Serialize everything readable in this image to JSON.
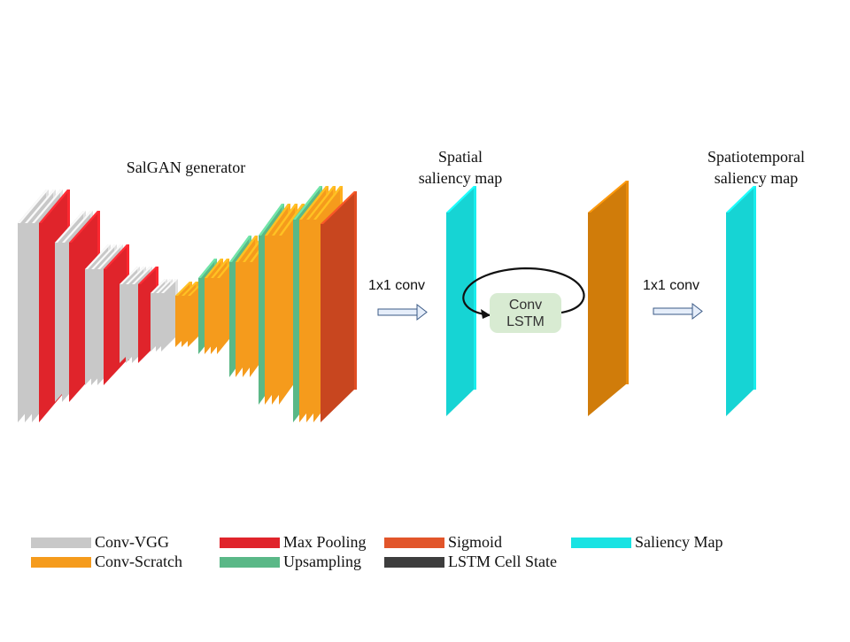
{
  "diagram": {
    "generator_title": "SalGAN generator",
    "spatial_title_1": "Spatial",
    "spatial_title_2": "saliency map",
    "spatiotemporal_title_1": "Spatiotemporal",
    "spatiotemporal_title_2": "saliency map",
    "conv1_label": "1x1 conv",
    "conv2_label": "1x1 conv",
    "lstm_line1": "Conv",
    "lstm_line2": "LSTM"
  },
  "legend": [
    {
      "label": "Conv-VGG",
      "color": "#c8c8c8"
    },
    {
      "label": "Conv-Scratch",
      "color": "#f59b1c"
    },
    {
      "label": "Max Pooling",
      "color": "#e0242b"
    },
    {
      "label": "Upsampling",
      "color": "#5ab887"
    },
    {
      "label": "Sigmoid",
      "color": "#e2552a"
    },
    {
      "label": "LSTM Cell State",
      "color": "#3d3d3d"
    },
    {
      "label": "Saliency Map",
      "color": "#19e3e3"
    }
  ],
  "colors": {
    "conv_vgg": "#c8c8c8",
    "conv_scratch": "#f59b1c",
    "max_pooling": "#e0242b",
    "upsampling": "#5ab887",
    "sigmoid": "#c8461f",
    "lstm_cell_state": "#d07c0a",
    "saliency_map": "#16d4d4"
  }
}
